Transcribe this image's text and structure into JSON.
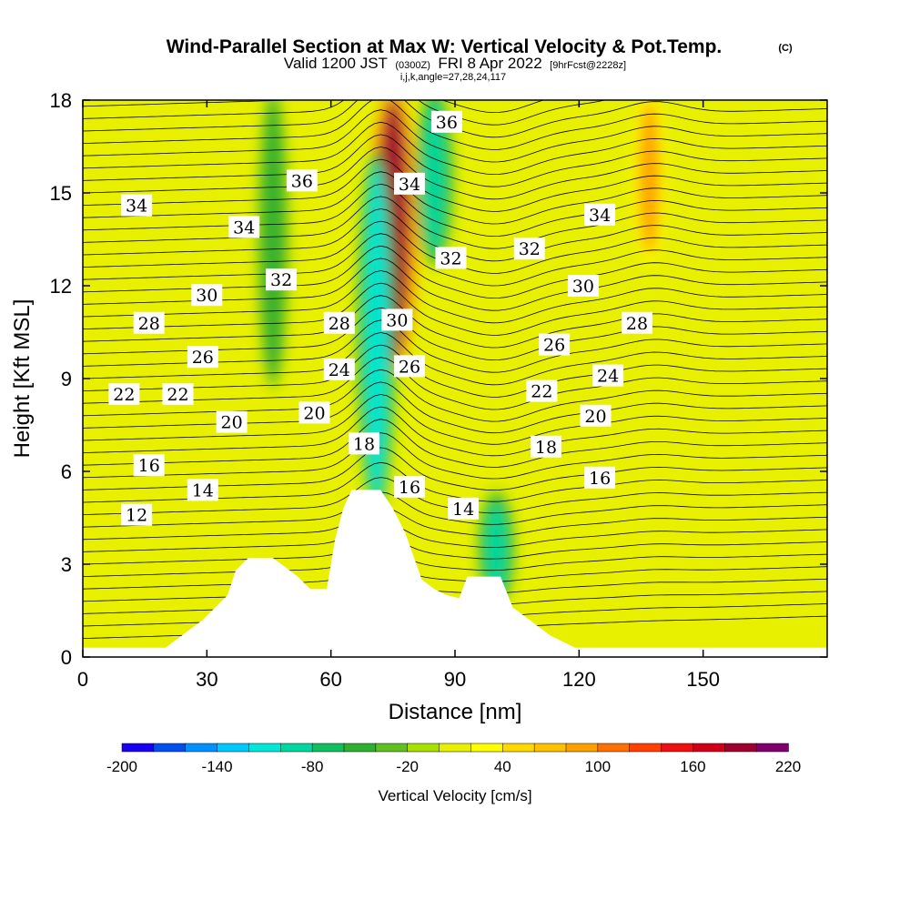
{
  "chart_data": {
    "type": "heatmap",
    "title": "Wind-Parallel Section at Max W: Vertical Velocity & Pot.Temp.",
    "title_mark": "(C)",
    "subtitle_main": "Valid 1200 JST",
    "subtitle_utc": "(0300Z)",
    "subtitle_date": "FRI 8 Apr 2022",
    "subtitle_fcst": "[9hrFcst@2228z]",
    "subtitle2": "i,j,k,angle=27,28,24,117",
    "xlabel": "Distance [nm]",
    "ylabel": "Height [Kft MSL]",
    "xlim": [
      0,
      180
    ],
    "ylim": [
      0,
      18
    ],
    "xticks": [
      0,
      30,
      60,
      90,
      120,
      150
    ],
    "yticks": [
      0,
      3,
      6,
      9,
      12,
      15,
      18
    ],
    "colorbar": {
      "label": "Vertical Velocity [cm/s]",
      "ticks": [
        -200,
        -140,
        -80,
        -20,
        40,
        100,
        160,
        220
      ],
      "min": -200,
      "max": 220,
      "step": 20,
      "colors": [
        "#1a00f0",
        "#0050f0",
        "#0090ff",
        "#00c8ff",
        "#00e8d8",
        "#00d8a0",
        "#10c060",
        "#30b030",
        "#60c020",
        "#a8e000",
        "#e8f000",
        "#ffff00",
        "#ffd800",
        "#ffc000",
        "#ffa000",
        "#ff7000",
        "#ff4000",
        "#f01010",
        "#d00018",
        "#a00030",
        "#800070"
      ]
    },
    "velocity_features": [
      {
        "x": 75,
        "z_bottom": 9.5,
        "z_top": 18,
        "w": 190
      },
      {
        "x": 71,
        "z_bottom": 5,
        "z_top": 16,
        "w": -110
      },
      {
        "x": 137,
        "z_bottom": 13,
        "z_top": 18,
        "w": 80
      },
      {
        "x": 46,
        "z_bottom": 9,
        "z_top": 18,
        "w": -60
      },
      {
        "x": 100,
        "z_bottom": 2,
        "z_top": 5,
        "w": -90
      },
      {
        "x": 85,
        "z_bottom": 13,
        "z_top": 18,
        "w": -100
      }
    ],
    "contour_labels": [
      {
        "text": "34",
        "x": 13,
        "z": 14.6
      },
      {
        "text": "36",
        "x": 53,
        "z": 15.4
      },
      {
        "text": "34",
        "x": 39,
        "z": 13.9
      },
      {
        "text": "36",
        "x": 88,
        "z": 17.3
      },
      {
        "text": "34",
        "x": 79,
        "z": 15.3
      },
      {
        "text": "34",
        "x": 125,
        "z": 14.3
      },
      {
        "text": "32",
        "x": 48,
        "z": 12.2
      },
      {
        "text": "32",
        "x": 89,
        "z": 12.9
      },
      {
        "text": "32",
        "x": 108,
        "z": 13.2
      },
      {
        "text": "30",
        "x": 30,
        "z": 11.7
      },
      {
        "text": "30",
        "x": 76,
        "z": 10.9
      },
      {
        "text": "30",
        "x": 121,
        "z": 12.0
      },
      {
        "text": "28",
        "x": 16,
        "z": 10.8
      },
      {
        "text": "28",
        "x": 62,
        "z": 10.8
      },
      {
        "text": "28",
        "x": 134,
        "z": 10.8
      },
      {
        "text": "26",
        "x": 29,
        "z": 9.7
      },
      {
        "text": "26",
        "x": 79,
        "z": 9.4
      },
      {
        "text": "26",
        "x": 114,
        "z": 10.1
      },
      {
        "text": "24",
        "x": 62,
        "z": 9.3
      },
      {
        "text": "24",
        "x": 127,
        "z": 9.1
      },
      {
        "text": "22",
        "x": 10,
        "z": 8.5
      },
      {
        "text": "22",
        "x": 23,
        "z": 8.5
      },
      {
        "text": "22",
        "x": 111,
        "z": 8.6
      },
      {
        "text": "20",
        "x": 36,
        "z": 7.6
      },
      {
        "text": "20",
        "x": 56,
        "z": 7.9
      },
      {
        "text": "20",
        "x": 124,
        "z": 7.8
      },
      {
        "text": "18",
        "x": 68,
        "z": 6.9
      },
      {
        "text": "18",
        "x": 112,
        "z": 6.8
      },
      {
        "text": "16",
        "x": 16,
        "z": 6.2
      },
      {
        "text": "16",
        "x": 79,
        "z": 5.5
      },
      {
        "text": "16",
        "x": 125,
        "z": 5.8
      },
      {
        "text": "14",
        "x": 29,
        "z": 5.4
      },
      {
        "text": "14",
        "x": 92,
        "z": 4.8
      },
      {
        "text": "12",
        "x": 13,
        "z": 4.6
      }
    ],
    "terrain": [
      {
        "x": 0,
        "z": 0.3
      },
      {
        "x": 20,
        "z": 0.3
      },
      {
        "x": 23,
        "z": 0.6
      },
      {
        "x": 26,
        "z": 0.9
      },
      {
        "x": 29,
        "z": 1.2
      },
      {
        "x": 32,
        "z": 1.6
      },
      {
        "x": 35,
        "z": 2.0
      },
      {
        "x": 37,
        "z": 2.8
      },
      {
        "x": 40,
        "z": 3.2
      },
      {
        "x": 46,
        "z": 3.2
      },
      {
        "x": 49,
        "z": 2.9
      },
      {
        "x": 52,
        "z": 2.6
      },
      {
        "x": 55,
        "z": 2.2
      },
      {
        "x": 59,
        "z": 2.2
      },
      {
        "x": 61,
        "z": 3.8
      },
      {
        "x": 63,
        "z": 4.8
      },
      {
        "x": 65,
        "z": 5.4
      },
      {
        "x": 72,
        "z": 5.4
      },
      {
        "x": 75,
        "z": 4.8
      },
      {
        "x": 78,
        "z": 4.0
      },
      {
        "x": 82,
        "z": 2.5
      },
      {
        "x": 85,
        "z": 2.2
      },
      {
        "x": 88,
        "z": 2.0
      },
      {
        "x": 91,
        "z": 1.9
      },
      {
        "x": 93,
        "z": 2.6
      },
      {
        "x": 101,
        "z": 2.6
      },
      {
        "x": 104,
        "z": 1.6
      },
      {
        "x": 107,
        "z": 1.3
      },
      {
        "x": 110,
        "z": 1.0
      },
      {
        "x": 113,
        "z": 0.7
      },
      {
        "x": 116,
        "z": 0.5
      },
      {
        "x": 119,
        "z": 0.3
      },
      {
        "x": 180,
        "z": 0.3
      }
    ]
  }
}
